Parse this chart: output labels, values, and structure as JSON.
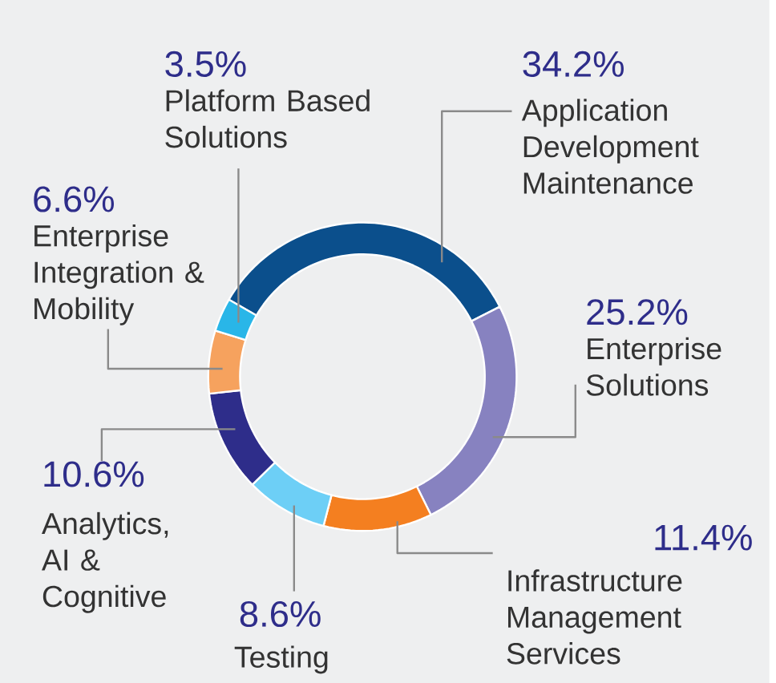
{
  "chart_data": {
    "type": "donut",
    "categories": [
      "Application Development Maintenance",
      "Enterprise Solutions",
      "Infrastructure Management Services",
      "Testing",
      "Analytics, AI & Cognitive",
      "Enterprise Integration & Mobility",
      "Platform Based Solutions"
    ],
    "values": [
      34.2,
      25.2,
      11.4,
      8.6,
      10.6,
      6.6,
      3.5
    ],
    "value_labels": [
      "34.2%",
      "25.2%",
      "11.4%",
      "8.6%",
      "10.6%",
      "6.6%",
      "3.5%"
    ],
    "colors": [
      "#0b4f8c",
      "#8782c0",
      "#f47f20",
      "#6dcff6",
      "#2e2d8a",
      "#f6a25e",
      "#29b6e8"
    ]
  }
}
